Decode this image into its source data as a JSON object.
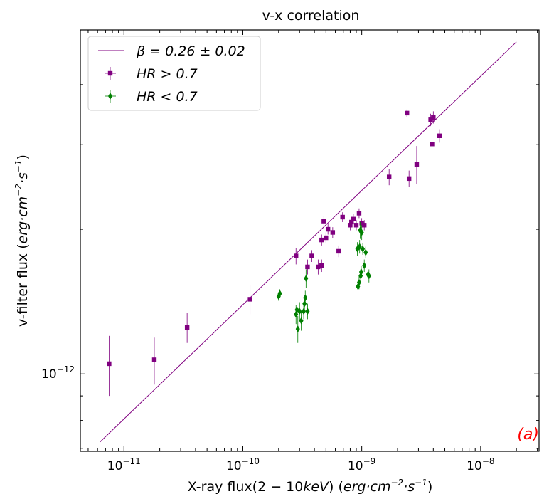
{
  "chart_data": {
    "type": "scatter",
    "title": "v-x correlation",
    "xlabel_prefix": "X-ray flux",
    "xlabel_range": "(2 − 10",
    "xlabel_unit_kev": "keV",
    "xlabel_units": "erg·cm",
    "xlabel_exp1": "−2",
    "xlabel_s": "·s",
    "xlabel_exp2": "−1",
    "ylabel_prefix": "v-filter flux",
    "ylabel_units": "erg·cm",
    "ylabel_exp1": "−2",
    "ylabel_s": "·s",
    "ylabel_exp2": "−1",
    "xscale": "log",
    "yscale": "log",
    "xlim": [
      4.3e-12,
      3.1e-08
    ],
    "ylim": [
      6.9e-13,
      5.2e-12
    ],
    "x_ticks": [
      {
        "value": 1e-11,
        "base": "10",
        "exp": "−11"
      },
      {
        "value": 1e-10,
        "base": "10",
        "exp": "−10"
      },
      {
        "value": 1e-09,
        "base": "10",
        "exp": "−9"
      },
      {
        "value": 1e-08,
        "base": "10",
        "exp": "−8"
      }
    ],
    "y_ticks": [
      {
        "value": 1e-12,
        "base": "10",
        "exp": "−12"
      }
    ],
    "legend_position": "top-left",
    "fit_line": {
      "name": "β = 0.26 ± 0.02",
      "color": "#800080",
      "x": [
        6.3e-12,
        2e-08
      ],
      "y": [
        7.22e-13,
        4.91e-12
      ]
    },
    "series": [
      {
        "name": "HR > 0.7",
        "marker": "square",
        "color": "#800080",
        "points": [
          {
            "x": 7.5e-12,
            "y": 1.05e-12,
            "err": 1.5e-13
          },
          {
            "x": 1.8e-11,
            "y": 1.07e-12,
            "err": 1.2e-13
          },
          {
            "x": 3.4e-11,
            "y": 1.25e-12,
            "err": 9e-14
          },
          {
            "x": 1.15e-10,
            "y": 1.43e-12,
            "err": 1e-13
          },
          {
            "x": 2.8e-10,
            "y": 1.76e-12,
            "err": 7e-14
          },
          {
            "x": 3.5e-10,
            "y": 1.67e-12,
            "err": 6e-14
          },
          {
            "x": 3.8e-10,
            "y": 1.76e-12,
            "err": 5e-14
          },
          {
            "x": 4.3e-10,
            "y": 1.67e-12,
            "err": 6e-14
          },
          {
            "x": 4.6e-10,
            "y": 1.68e-12,
            "err": 5e-14
          },
          {
            "x": 4.6e-10,
            "y": 1.9e-12,
            "err": 5e-14
          },
          {
            "x": 4.8e-10,
            "y": 2.08e-12,
            "err": 5e-14
          },
          {
            "x": 5e-10,
            "y": 1.92e-12,
            "err": 5e-14
          },
          {
            "x": 5.2e-10,
            "y": 2e-12,
            "err": 5e-14
          },
          {
            "x": 5.7e-10,
            "y": 1.97e-12,
            "err": 5e-14
          },
          {
            "x": 6.4e-10,
            "y": 1.8e-12,
            "err": 5e-14
          },
          {
            "x": 6.9e-10,
            "y": 2.12e-12,
            "err": 5e-14
          },
          {
            "x": 8e-10,
            "y": 2.04e-12,
            "err": 5e-14
          },
          {
            "x": 8.2e-10,
            "y": 2.07e-12,
            "err": 5e-14
          },
          {
            "x": 8.5e-10,
            "y": 2.1e-12,
            "err": 5e-14
          },
          {
            "x": 9e-10,
            "y": 2.04e-12,
            "err": 5e-14
          },
          {
            "x": 9.5e-10,
            "y": 2.16e-12,
            "err": 5e-14
          },
          {
            "x": 1e-09,
            "y": 2.06e-12,
            "err": 5e-14
          },
          {
            "x": 1.05e-09,
            "y": 2.04e-12,
            "err": 5e-14
          },
          {
            "x": 1.7e-09,
            "y": 2.57e-12,
            "err": 1e-13
          },
          {
            "x": 2.4e-09,
            "y": 3.49e-12,
            "err": 6e-14
          },
          {
            "x": 2.5e-09,
            "y": 2.55e-12,
            "err": 1e-13
          },
          {
            "x": 2.9e-09,
            "y": 2.73e-12,
            "err": 2.5e-13
          },
          {
            "x": 3.8e-09,
            "y": 3.38e-12,
            "err": 1e-13
          },
          {
            "x": 3.9e-09,
            "y": 3.01e-12,
            "err": 1e-13
          },
          {
            "x": 4e-09,
            "y": 3.42e-12,
            "err": 1e-13
          },
          {
            "x": 4.5e-09,
            "y": 3.13e-12,
            "err": 1e-13
          }
        ]
      },
      {
        "name": "HR < 0.7",
        "marker": "diamond",
        "color": "#008000",
        "points": [
          {
            "x": 2e-10,
            "y": 1.45e-12,
            "err": 3e-14
          },
          {
            "x": 2.05e-10,
            "y": 1.47e-12,
            "err": 3e-14
          },
          {
            "x": 2.8e-10,
            "y": 1.33e-12,
            "err": 6e-14
          },
          {
            "x": 2.85e-10,
            "y": 1.36e-12,
            "err": 6e-14
          },
          {
            "x": 2.9e-10,
            "y": 1.24e-12,
            "err": 8e-14
          },
          {
            "x": 3e-10,
            "y": 1.35e-12,
            "err": 6e-14
          },
          {
            "x": 3.1e-10,
            "y": 1.29e-12,
            "err": 6e-14
          },
          {
            "x": 3.25e-10,
            "y": 1.35e-12,
            "err": 5e-14
          },
          {
            "x": 3.3e-10,
            "y": 1.4e-12,
            "err": 5e-14
          },
          {
            "x": 3.35e-10,
            "y": 1.44e-12,
            "err": 5e-14
          },
          {
            "x": 3.4e-10,
            "y": 1.58e-12,
            "err": 7e-14
          },
          {
            "x": 3.5e-10,
            "y": 1.35e-12,
            "err": 5e-14
          },
          {
            "x": 9.2e-10,
            "y": 1.82e-12,
            "err": 6e-14
          },
          {
            "x": 9.3e-10,
            "y": 1.52e-12,
            "err": 5e-14
          },
          {
            "x": 9.5e-10,
            "y": 1.55e-12,
            "err": 5e-14
          },
          {
            "x": 9.6e-10,
            "y": 1.84e-12,
            "err": 6e-14
          },
          {
            "x": 9.7e-10,
            "y": 1.99e-12,
            "err": 8e-14
          },
          {
            "x": 9.8e-10,
            "y": 1.6e-12,
            "err": 5e-14
          },
          {
            "x": 9.9e-10,
            "y": 1.63e-12,
            "err": 5e-14
          },
          {
            "x": 1e-09,
            "y": 1.97e-12,
            "err": 7e-14
          },
          {
            "x": 1.02e-09,
            "y": 1.82e-12,
            "err": 5e-14
          },
          {
            "x": 1.05e-09,
            "y": 1.68e-12,
            "err": 5e-14
          },
          {
            "x": 1.08e-09,
            "y": 1.79e-12,
            "err": 5e-14
          },
          {
            "x": 1.13e-09,
            "y": 1.61e-12,
            "err": 5e-14
          },
          {
            "x": 1.15e-09,
            "y": 1.6e-12,
            "err": 5e-14
          }
        ]
      }
    ],
    "annotation": {
      "text": "(a)",
      "color": "#ff0000"
    }
  }
}
